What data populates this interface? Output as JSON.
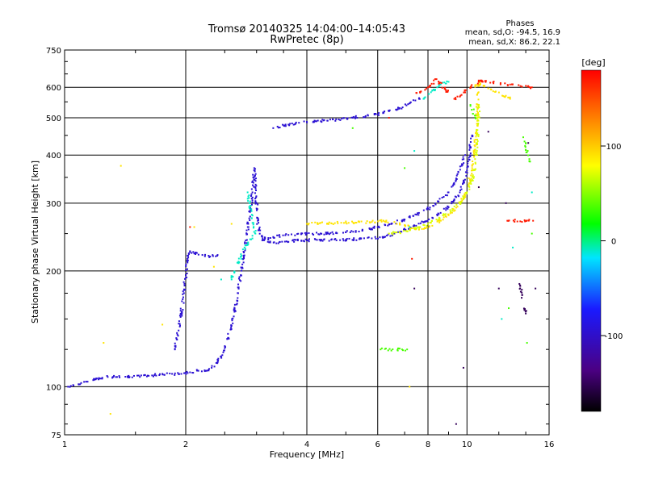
{
  "chart_data": {
    "type": "scatter",
    "title": "Tromsø 20140325 14:04:00–14:05:43",
    "subtitle": "RwPretec (8p)",
    "xlabel": "Frequency [MHz]",
    "ylabel": "Stationary phase Virtual Height [km]",
    "x_scale": "log",
    "y_scale": "log",
    "xlim": [
      1,
      16
    ],
    "ylim": [
      75,
      750
    ],
    "x_ticks": [
      1,
      2,
      4,
      6,
      8,
      10,
      16
    ],
    "x_tick_labels": [
      "1",
      "2",
      "4",
      "6",
      "8",
      "10",
      "16"
    ],
    "y_ticks": [
      75,
      100,
      200,
      300,
      400,
      500,
      600,
      750
    ],
    "y_tick_labels": [
      "75",
      "100",
      "200",
      "300",
      "400",
      "500",
      "600",
      "750"
    ],
    "grid": true,
    "stats": {
      "header": "Phases",
      "line_o": "mean, sd,O: -94.5, 16.9",
      "line_x": "mean, sd,X:  86.2, 22.1"
    },
    "colorbar": {
      "label": "[deg]",
      "range": [
        -180,
        180
      ],
      "ticks": [
        100,
        0,
        -100
      ],
      "tick_labels": [
        "100",
        "0",
        "-100"
      ]
    },
    "series": [
      {
        "color_phase": -95,
        "points": [
          [
            1.02,
            100
          ],
          [
            1.05,
            101
          ],
          [
            1.22,
            105
          ],
          [
            1.28,
            106
          ],
          [
            1.35,
            106
          ],
          [
            1.45,
            106
          ],
          [
            1.55,
            107
          ],
          [
            1.65,
            107
          ],
          [
            1.75,
            108
          ],
          [
            1.85,
            108
          ],
          [
            1.95,
            108
          ],
          [
            2.05,
            109
          ],
          [
            2.15,
            110
          ],
          [
            2.25,
            110
          ],
          [
            2.32,
            112
          ],
          [
            2.4,
            116
          ],
          [
            2.45,
            120
          ],
          [
            2.5,
            126
          ],
          [
            2.55,
            134
          ],
          [
            2.6,
            144
          ],
          [
            2.65,
            158
          ],
          [
            2.7,
            175
          ],
          [
            2.74,
            195
          ],
          [
            2.78,
            215
          ],
          [
            2.82,
            240
          ],
          [
            2.86,
            265
          ],
          [
            2.9,
            290
          ],
          [
            2.93,
            320
          ],
          [
            2.95,
            350
          ],
          [
            2.96,
            370
          ],
          [
            2.98,
            330
          ],
          [
            3.0,
            300
          ],
          [
            3.02,
            270
          ],
          [
            3.05,
            255
          ],
          [
            3.1,
            245
          ],
          [
            3.2,
            238
          ],
          [
            3.4,
            236
          ],
          [
            3.6,
            238
          ],
          [
            3.8,
            240
          ],
          [
            4.0,
            240
          ],
          [
            4.3,
            241
          ],
          [
            4.6,
            241
          ],
          [
            5.0,
            241
          ],
          [
            5.4,
            242
          ],
          [
            5.8,
            243
          ],
          [
            6.2,
            245
          ],
          [
            6.6,
            250
          ],
          [
            7.0,
            256
          ],
          [
            7.4,
            262
          ],
          [
            7.8,
            268
          ],
          [
            8.2,
            275
          ],
          [
            8.6,
            283
          ],
          [
            9.0,
            293
          ],
          [
            9.3,
            305
          ],
          [
            9.6,
            320
          ],
          [
            9.8,
            340
          ],
          [
            10.0,
            365
          ],
          [
            10.1,
            390
          ],
          [
            10.2,
            420
          ],
          [
            10.3,
            450
          ],
          [
            1.88,
            125
          ],
          [
            1.92,
            140
          ],
          [
            1.95,
            155
          ],
          [
            1.98,
            175
          ],
          [
            2.0,
            195
          ],
          [
            2.02,
            215
          ],
          [
            2.05,
            225
          ],
          [
            2.1,
            222
          ],
          [
            2.2,
            220
          ],
          [
            2.3,
            218
          ],
          [
            2.4,
            220
          ],
          [
            3.3,
            470
          ],
          [
            3.6,
            480
          ],
          [
            4.0,
            488
          ],
          [
            4.4,
            492
          ],
          [
            4.8,
            495
          ],
          [
            5.2,
            500
          ],
          [
            5.6,
            505
          ],
          [
            6.0,
            510
          ],
          [
            6.4,
            520
          ],
          [
            6.8,
            530
          ],
          [
            7.2,
            545
          ],
          [
            7.6,
            560
          ],
          [
            3.1,
            240
          ],
          [
            3.3,
            245
          ],
          [
            3.6,
            248
          ],
          [
            4.0,
            250
          ],
          [
            4.5,
            250
          ],
          [
            5.0,
            252
          ],
          [
            5.5,
            255
          ],
          [
            6.0,
            260
          ],
          [
            6.5,
            265
          ],
          [
            7.0,
            272
          ],
          [
            7.5,
            280
          ],
          [
            8.0,
            290
          ],
          [
            8.5,
            303
          ],
          [
            9.0,
            320
          ],
          [
            9.4,
            345
          ],
          [
            9.7,
            375
          ],
          [
            9.9,
            400
          ]
        ]
      },
      {
        "color_phase": 90,
        "points": [
          [
            4.0,
            265
          ],
          [
            4.3,
            266
          ],
          [
            4.6,
            266
          ],
          [
            5.0,
            267
          ],
          [
            5.4,
            268
          ],
          [
            5.8,
            268
          ],
          [
            6.2,
            270
          ],
          [
            6.6,
            268
          ],
          [
            7.0,
            263
          ],
          [
            7.3,
            258
          ],
          [
            7.6,
            256
          ],
          [
            7.9,
            258
          ],
          [
            8.2,
            262
          ],
          [
            8.6,
            270
          ],
          [
            9.0,
            280
          ],
          [
            9.4,
            292
          ],
          [
            9.8,
            310
          ],
          [
            10.1,
            335
          ],
          [
            10.3,
            370
          ],
          [
            10.45,
            410
          ],
          [
            10.55,
            460
          ],
          [
            10.6,
            520
          ],
          [
            10.65,
            580
          ],
          [
            10.7,
            620
          ],
          [
            1.38,
            375
          ],
          [
            1.3,
            85
          ],
          [
            1.25,
            130
          ],
          [
            1.75,
            145
          ],
          [
            2.1,
            260
          ],
          [
            2.35,
            205
          ],
          [
            2.6,
            265
          ],
          [
            7.2,
            100
          ],
          [
            10.2,
            600
          ],
          [
            10.8,
            610
          ],
          [
            12.8,
            560
          ]
        ]
      },
      {
        "color_phase": 70,
        "points": [
          [
            6.4,
            250
          ],
          [
            6.8,
            252
          ],
          [
            7.2,
            255
          ],
          [
            7.6,
            260
          ],
          [
            8.0,
            265
          ],
          [
            8.4,
            272
          ],
          [
            8.8,
            280
          ],
          [
            9.2,
            290
          ],
          [
            9.6,
            300
          ],
          [
            10.0,
            320
          ],
          [
            10.3,
            345
          ],
          [
            10.5,
            380
          ],
          [
            10.6,
            430
          ],
          [
            10.65,
            480
          ],
          [
            10.7,
            540
          ]
        ]
      },
      {
        "color_phase": -10,
        "points": [
          [
            2.85,
            320
          ],
          [
            2.88,
            300
          ],
          [
            2.92,
            280
          ],
          [
            2.95,
            260
          ],
          [
            2.98,
            250
          ],
          [
            2.8,
            230
          ],
          [
            2.7,
            210
          ],
          [
            2.6,
            190
          ],
          [
            7.8,
            560
          ],
          [
            8.3,
            590
          ],
          [
            8.6,
            610
          ],
          [
            9.0,
            620
          ],
          [
            7.4,
            410
          ],
          [
            7.2,
            260
          ],
          [
            14.5,
            320
          ],
          [
            13.0,
            230
          ],
          [
            2.45,
            190
          ],
          [
            12.2,
            150
          ]
        ]
      },
      {
        "color_phase": 170,
        "points": [
          [
            6.4,
            500
          ],
          [
            7.5,
            580
          ],
          [
            8.0,
            600
          ],
          [
            8.4,
            630
          ],
          [
            9.3,
            560
          ],
          [
            10.8,
            625
          ],
          [
            12.8,
            610
          ],
          [
            14.5,
            600
          ],
          [
            7.3,
            215
          ],
          [
            2.05,
            260
          ],
          [
            14.6,
            270
          ],
          [
            12.6,
            270
          ]
        ]
      },
      {
        "color_phase": -150,
        "points": [
          [
            9.4,
            80
          ],
          [
            9.8,
            112
          ],
          [
            12.0,
            180
          ],
          [
            14.8,
            180
          ],
          [
            7.4,
            180
          ],
          [
            11.3,
            460
          ],
          [
            12.5,
            300
          ],
          [
            14.2,
            430
          ],
          [
            10.7,
            330
          ],
          [
            14.0,
            155
          ],
          [
            13.5,
            185
          ]
        ]
      },
      {
        "color_phase": 35,
        "points": [
          [
            5.2,
            470
          ],
          [
            7.0,
            370
          ],
          [
            10.2,
            540
          ],
          [
            10.5,
            500
          ],
          [
            13.8,
            445
          ],
          [
            14.3,
            385
          ],
          [
            14.5,
            250
          ],
          [
            12.7,
            160
          ],
          [
            14.1,
            130
          ],
          [
            6.1,
            125
          ],
          [
            7.1,
            125
          ]
        ]
      }
    ]
  }
}
